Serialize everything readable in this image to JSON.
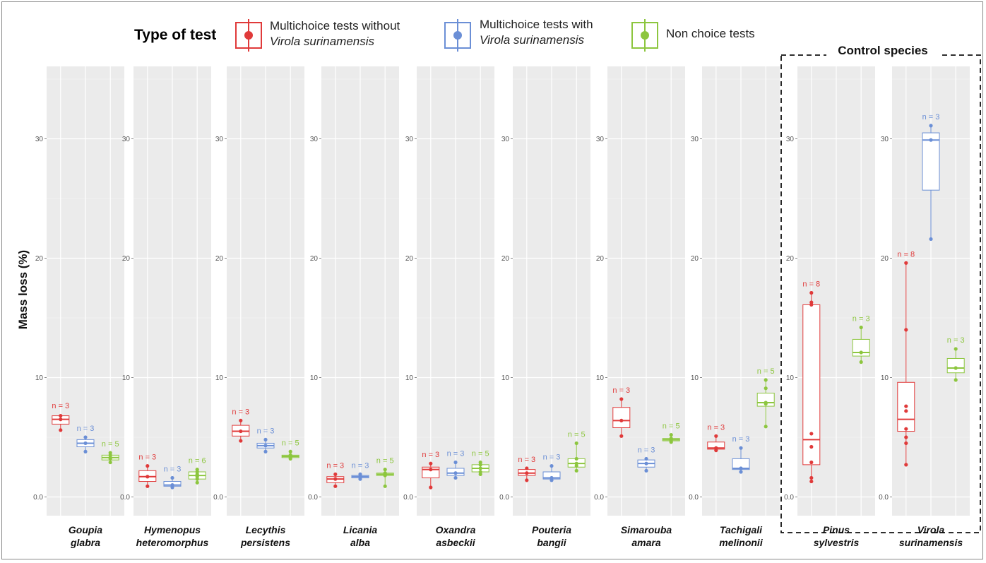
{
  "chart_data": {
    "type": "box",
    "ylabel": "Mass loss  (%)",
    "yticks": [
      0,
      10,
      20,
      30
    ],
    "ytick_labels": [
      "0.0",
      "10",
      "20",
      "30"
    ],
    "ylim": [
      -1.5,
      36
    ],
    "grid": true,
    "legend": {
      "title": "Type of test",
      "placement": "top",
      "items": [
        {
          "line1": "Multichoice tests without",
          "line2": "Virola surinamensis",
          "color": "#e03a3a"
        },
        {
          "line1": "Multichoice tests with",
          "line2": "Virola surinamensis",
          "color": "#6b8fd6"
        },
        {
          "line1": "Non choice tests",
          "line2": "",
          "color": "#8dc63f"
        }
      ]
    },
    "control_label": "Control species",
    "panels": [
      {
        "species": [
          "Goupia",
          "glabra"
        ],
        "control": false,
        "boxes": [
          {
            "series": 0,
            "n": "n = 3",
            "q1": 6.1,
            "median": 6.5,
            "q3": 6.8,
            "min": 5.6,
            "max": 6.9,
            "points": [
              5.6,
              6.5,
              6.8
            ]
          },
          {
            "series": 1,
            "n": "n = 3",
            "q1": 4.2,
            "median": 4.5,
            "q3": 4.8,
            "min": 3.8,
            "max": 5.0,
            "points": [
              3.8,
              4.5,
              5.0
            ]
          },
          {
            "series": 2,
            "n": "n = 5",
            "q1": 3.1,
            "median": 3.3,
            "q3": 3.5,
            "min": 2.9,
            "max": 3.7,
            "points": [
              2.9,
              3.2,
              3.3,
              3.5,
              3.7
            ]
          }
        ]
      },
      {
        "species": [
          "Hymenopus",
          "heteromorphus"
        ],
        "control": false,
        "boxes": [
          {
            "series": 0,
            "n": "n = 3",
            "q1": 1.3,
            "median": 1.7,
            "q3": 2.2,
            "min": 0.9,
            "max": 2.6,
            "points": [
              0.9,
              1.7,
              2.6
            ]
          },
          {
            "series": 1,
            "n": "n = 3",
            "q1": 0.9,
            "median": 1.0,
            "q3": 1.3,
            "min": 0.8,
            "max": 1.6,
            "points": [
              0.8,
              1.0,
              1.6
            ]
          },
          {
            "series": 2,
            "n": "n = 6",
            "q1": 1.5,
            "median": 1.8,
            "q3": 2.1,
            "min": 1.2,
            "max": 2.3,
            "points": [
              1.2,
              1.5,
              1.7,
              1.9,
              2.1,
              2.3
            ]
          }
        ]
      },
      {
        "species": [
          "Lecythis",
          "persistens"
        ],
        "control": false,
        "boxes": [
          {
            "series": 0,
            "n": "n = 3",
            "q1": 5.1,
            "median": 5.5,
            "q3": 6.0,
            "min": 4.7,
            "max": 6.4,
            "points": [
              4.7,
              5.5,
              6.4
            ]
          },
          {
            "series": 1,
            "n": "n = 3",
            "q1": 4.1,
            "median": 4.3,
            "q3": 4.5,
            "min": 3.8,
            "max": 4.8,
            "points": [
              3.8,
              4.3,
              4.8
            ]
          },
          {
            "series": 2,
            "n": "n = 5",
            "q1": 3.3,
            "median": 3.4,
            "q3": 3.5,
            "min": 3.2,
            "max": 3.8,
            "points": [
              3.2,
              3.3,
              3.4,
              3.5,
              3.8
            ]
          }
        ]
      },
      {
        "species": [
          "Licania",
          "alba"
        ],
        "control": false,
        "boxes": [
          {
            "series": 0,
            "n": "n = 3",
            "q1": 1.2,
            "median": 1.5,
            "q3": 1.7,
            "min": 0.9,
            "max": 1.9,
            "points": [
              0.9,
              1.5,
              1.9
            ]
          },
          {
            "series": 1,
            "n": "n = 3",
            "q1": 1.6,
            "median": 1.7,
            "q3": 1.8,
            "min": 1.5,
            "max": 1.9,
            "points": [
              1.5,
              1.7,
              1.9
            ]
          },
          {
            "series": 2,
            "n": "n = 5",
            "q1": 1.8,
            "median": 1.9,
            "q3": 2.0,
            "min": 0.9,
            "max": 2.3,
            "points": [
              0.9,
              1.8,
              1.9,
              2.0,
              2.3
            ]
          }
        ]
      },
      {
        "species": [
          "Oxandra",
          "asbeckii"
        ],
        "control": false,
        "boxes": [
          {
            "series": 0,
            "n": "n = 3",
            "q1": 1.6,
            "median": 2.3,
            "q3": 2.5,
            "min": 0.8,
            "max": 2.8,
            "points": [
              0.8,
              2.3,
              2.8
            ]
          },
          {
            "series": 1,
            "n": "n = 3",
            "q1": 1.8,
            "median": 2.0,
            "q3": 2.4,
            "min": 1.6,
            "max": 2.9,
            "points": [
              1.6,
              2.0,
              2.9
            ]
          },
          {
            "series": 2,
            "n": "n = 5",
            "q1": 2.1,
            "median": 2.4,
            "q3": 2.7,
            "min": 1.9,
            "max": 2.9,
            "points": [
              1.9,
              2.1,
              2.4,
              2.7,
              2.9
            ]
          }
        ]
      },
      {
        "species": [
          "Pouteria",
          "bangii"
        ],
        "control": false,
        "boxes": [
          {
            "series": 0,
            "n": "n = 3",
            "q1": 1.8,
            "median": 2.0,
            "q3": 2.3,
            "min": 1.4,
            "max": 2.4,
            "points": [
              1.4,
              2.0,
              2.4
            ]
          },
          {
            "series": 1,
            "n": "n = 3",
            "q1": 1.5,
            "median": 1.6,
            "q3": 2.1,
            "min": 1.4,
            "max": 2.6,
            "points": [
              1.4,
              1.6,
              2.6
            ]
          },
          {
            "series": 2,
            "n": "n = 5",
            "q1": 2.5,
            "median": 2.8,
            "q3": 3.2,
            "min": 2.2,
            "max": 4.5,
            "points": [
              2.2,
              2.6,
              2.8,
              3.2,
              4.5
            ]
          }
        ]
      },
      {
        "species": [
          "Simarouba",
          "amara"
        ],
        "control": false,
        "boxes": [
          {
            "series": 0,
            "n": "n = 3",
            "q1": 5.8,
            "median": 6.4,
            "q3": 7.5,
            "min": 5.1,
            "max": 8.2,
            "points": [
              5.1,
              6.4,
              8.2
            ]
          },
          {
            "series": 1,
            "n": "n = 3",
            "q1": 2.5,
            "median": 2.8,
            "q3": 3.1,
            "min": 2.2,
            "max": 3.2,
            "points": [
              2.2,
              2.8,
              3.2
            ]
          },
          {
            "series": 2,
            "n": "n = 5",
            "q1": 4.7,
            "median": 4.8,
            "q3": 4.9,
            "min": 4.6,
            "max": 5.2,
            "points": [
              4.6,
              4.7,
              4.8,
              4.9,
              5.2
            ]
          }
        ]
      },
      {
        "species": [
          "Tachigali",
          "melinonii"
        ],
        "control": false,
        "boxes": [
          {
            "series": 0,
            "n": "n = 3",
            "q1": 4.0,
            "median": 4.1,
            "q3": 4.6,
            "min": 3.9,
            "max": 5.1,
            "points": [
              3.9,
              4.1,
              5.1
            ]
          },
          {
            "series": 1,
            "n": "n = 3",
            "q1": 2.3,
            "median": 2.4,
            "q3": 3.2,
            "min": 2.1,
            "max": 4.1,
            "points": [
              2.1,
              2.4,
              4.1
            ]
          },
          {
            "series": 2,
            "n": "n = 5",
            "q1": 7.6,
            "median": 7.9,
            "q3": 8.7,
            "min": 5.9,
            "max": 9.8,
            "points": [
              5.9,
              7.8,
              7.9,
              9.1,
              9.8
            ]
          }
        ]
      },
      {
        "species": [
          "Pinus",
          "sylvestris"
        ],
        "control": true,
        "boxes": [
          {
            "series": 0,
            "n": "n = 8",
            "q1": 2.7,
            "median": 4.8,
            "q3": 16.1,
            "min": 1.3,
            "max": 17.1,
            "points": [
              1.3,
              1.6,
              2.9,
              4.2,
              5.3,
              16.1,
              16.3,
              17.1
            ]
          },
          {
            "series": 2,
            "n": "n = 3",
            "q1": 11.8,
            "median": 12.1,
            "q3": 13.2,
            "min": 11.3,
            "max": 14.2,
            "points": [
              11.3,
              12.1,
              14.2
            ]
          }
        ]
      },
      {
        "species": [
          "Virola",
          "surinamensis"
        ],
        "control": true,
        "boxes": [
          {
            "series": 0,
            "n": "n = 8",
            "q1": 5.5,
            "median": 6.5,
            "q3": 9.6,
            "min": 2.7,
            "max": 19.6,
            "points": [
              2.7,
              4.5,
              5.0,
              5.7,
              7.2,
              7.6,
              14.0,
              19.6
            ]
          },
          {
            "series": 1,
            "n": "n = 3",
            "q1": 25.7,
            "median": 29.9,
            "q3": 30.5,
            "min": 21.6,
            "max": 31.1,
            "points": [
              21.6,
              29.9,
              31.1
            ]
          },
          {
            "series": 2,
            "n": "n = 3",
            "q1": 10.4,
            "median": 10.8,
            "q3": 11.6,
            "min": 9.8,
            "max": 12.4,
            "points": [
              9.8,
              10.8,
              12.4
            ]
          }
        ]
      }
    ]
  }
}
